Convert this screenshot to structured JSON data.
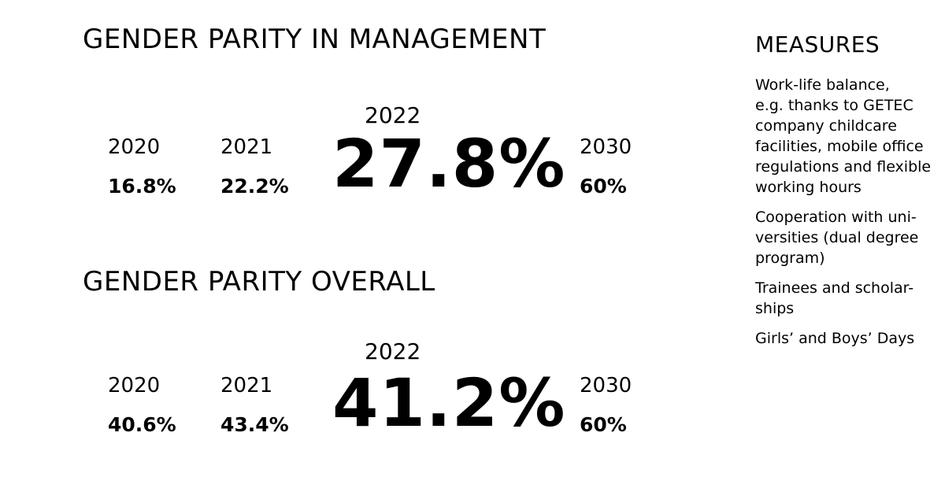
{
  "management": {
    "title": "GENDER PARITY IN MANAGEMENT",
    "y2020": "2020",
    "v2020": "16.8%",
    "y2021": "2021",
    "v2021": "22.2%",
    "y2022": "2022",
    "v2022": "27.8%",
    "y2030": "2030",
    "v2030": "60%"
  },
  "overall": {
    "title": "GENDER PARITY OVERALL",
    "y2020": "2020",
    "v2020": "40.6%",
    "y2021": "2021",
    "v2021": "43.4%",
    "y2022": "2022",
    "v2022": "41.2%",
    "y2030": "2030",
    "v2030": "60%"
  },
  "measures": {
    "title": "MEASURES",
    "items": [
      "Work-life balance,\ne.g. thanks to GETEC\ncompany childcare\nfacilities, mobile office\nregulations and flexible\nworking hours",
      "Cooperation with uni-\nversities (dual degree\nprogram)",
      "Trainees and scholar-\nships",
      "Girls’ and Boys’ Days"
    ]
  }
}
